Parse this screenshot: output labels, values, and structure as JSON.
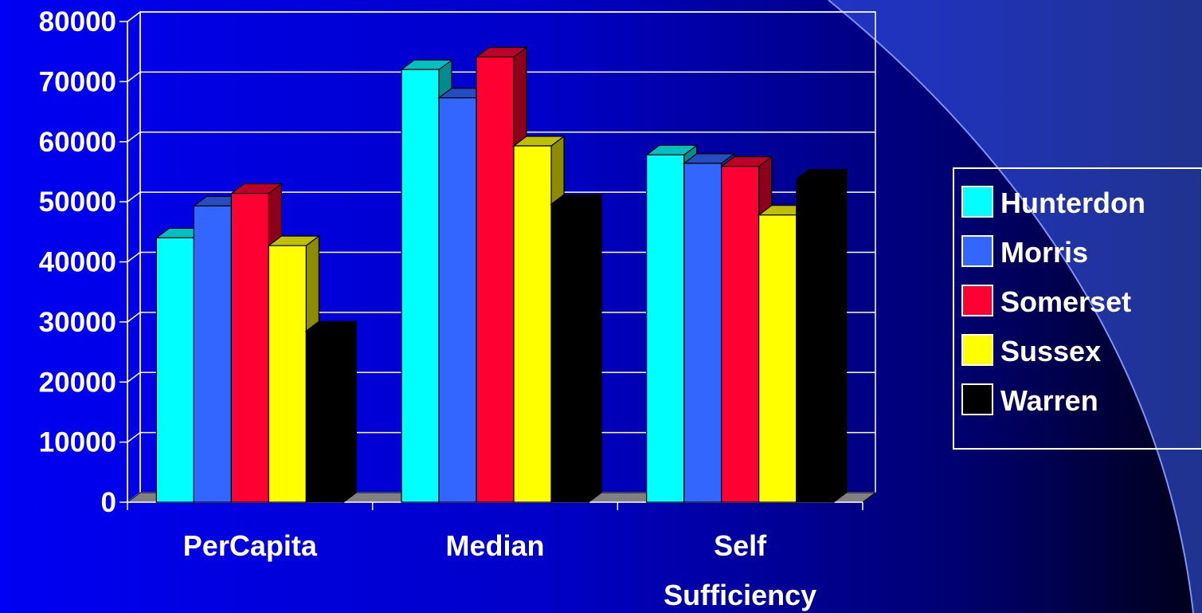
{
  "chart_data": {
    "type": "bar",
    "categories": [
      "PerCapita",
      "Median",
      "Self Sufficiency"
    ],
    "category_lines": [
      [
        "PerCapita"
      ],
      [
        "Median"
      ],
      [
        "Self",
        "Sufficiency"
      ]
    ],
    "series": [
      {
        "name": "Hunterdon",
        "values": [
          44000,
          72000,
          57800
        ],
        "color": "#00ffff"
      },
      {
        "name": "Morris",
        "values": [
          49300,
          67300,
          56400
        ],
        "color": "#3366ff"
      },
      {
        "name": "Somerset",
        "values": [
          51400,
          74100,
          55900
        ],
        "color": "#ff0033"
      },
      {
        "name": "Sussex",
        "values": [
          42700,
          59300,
          47800
        ],
        "color": "#ffff00"
      },
      {
        "name": "Warren",
        "values": [
          28500,
          49600,
          53800
        ],
        "color": "#000000"
      }
    ],
    "yticks": [
      "0",
      "10000",
      "20000",
      "30000",
      "40000",
      "50000",
      "60000",
      "70000",
      "80000"
    ],
    "ylim": [
      0,
      80000
    ],
    "grid": true,
    "legend_position": "right",
    "title": "",
    "xlabel": "",
    "ylabel": ""
  },
  "colors": {
    "background_left": "#0000f2",
    "background_right": "#000018",
    "grid": "#ffffff",
    "floor": "#808080",
    "text": "#ffffff"
  }
}
